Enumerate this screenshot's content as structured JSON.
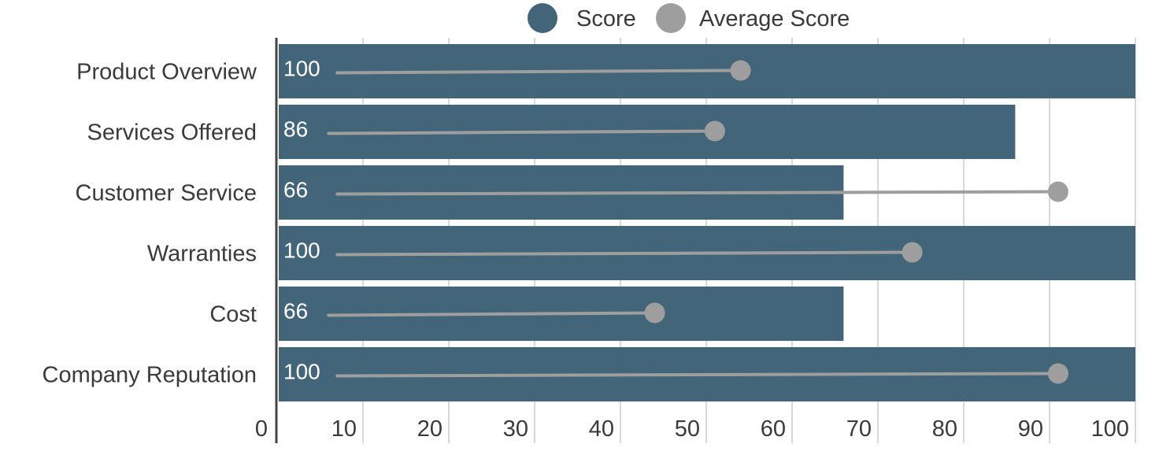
{
  "chart_data": {
    "type": "bar",
    "orientation": "horizontal",
    "categories": [
      "Product Overview",
      "Services Offered",
      "Customer Service",
      "Warranties",
      "Cost",
      "Company Reputation"
    ],
    "series": [
      {
        "name": "Score",
        "kind": "bar",
        "values": [
          100,
          86,
          66,
          100,
          66,
          100
        ],
        "color": "#426579"
      },
      {
        "name": "Average Score",
        "kind": "dot-line",
        "values": [
          54,
          51,
          91,
          74,
          44,
          91
        ],
        "line_start": [
          7,
          6,
          7,
          7,
          6,
          7
        ],
        "color": "#9e9e9e"
      }
    ],
    "data_labels": [
      "100",
      "86",
      "66",
      "100",
      "66",
      "100"
    ],
    "x_ticks": [
      "0",
      "10",
      "20",
      "30",
      "40",
      "50",
      "60",
      "70",
      "80",
      "90",
      "100"
    ],
    "xlim": [
      0,
      100
    ],
    "grid": true,
    "legend": "top-center",
    "title": "",
    "xlabel": "",
    "ylabel": ""
  }
}
